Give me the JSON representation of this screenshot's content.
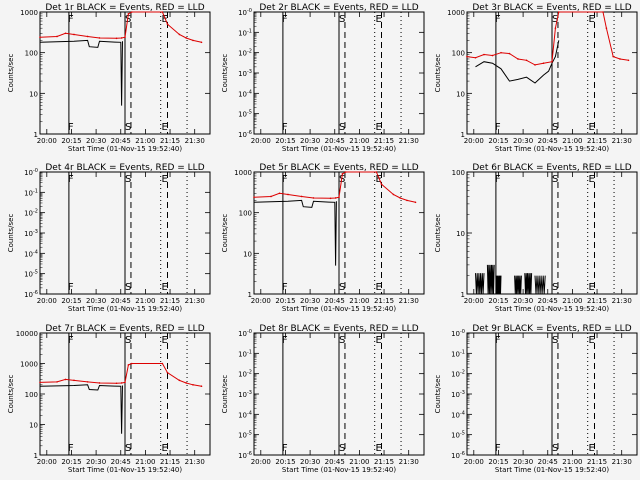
{
  "figure": {
    "xlabel": "Start Time (01-Nov-15 19:52:40)",
    "ylabel": "Counts/sec",
    "xticks": [
      "20:00",
      "20:15",
      "20:30",
      "20:45",
      "21:00",
      "21:15",
      "21:30"
    ],
    "series_colors": {
      "events": "#000000",
      "lld": "#dd0000"
    },
    "marker_labels": [
      "F",
      "S",
      "E"
    ]
  },
  "chart_data": [
    {
      "type": "line",
      "title": "Det 1r BLACK = Events, RED = LLD",
      "yscale": "log",
      "yticks": [
        "1",
        "10",
        "100",
        "1000"
      ],
      "ylim": [
        1,
        1000
      ],
      "series": [
        {
          "name": "BLACK = Events",
          "points": [
            [
              0.0,
              180
            ],
            [
              0.1,
              185
            ],
            [
              0.2,
              190
            ],
            [
              0.28,
              200
            ],
            [
              0.29,
              140
            ],
            [
              0.34,
              135
            ],
            [
              0.35,
              190
            ],
            [
              0.4,
              185
            ],
            [
              0.44,
              182
            ],
            [
              0.475,
              180
            ],
            [
              0.48,
              5
            ],
            [
              0.485,
              190
            ]
          ]
        },
        {
          "name": "RED = LLD",
          "points": [
            [
              0.0,
              240
            ],
            [
              0.1,
              250
            ],
            [
              0.15,
              300
            ],
            [
              0.2,
              280
            ],
            [
              0.28,
              250
            ],
            [
              0.35,
              230
            ],
            [
              0.45,
              225
            ],
            [
              0.48,
              230
            ],
            [
              0.5,
              240
            ],
            [
              0.52,
              900
            ],
            [
              0.54,
              1000
            ],
            [
              0.72,
              1000
            ],
            [
              0.75,
              500
            ],
            [
              0.82,
              280
            ],
            [
              0.86,
              230
            ],
            [
              0.9,
              200
            ],
            [
              0.95,
              180
            ]
          ]
        }
      ]
    },
    {
      "type": "line",
      "title": "Det 2r BLACK = Events, RED = LLD",
      "yscale": "log",
      "yticks": [
        "10^-0",
        "10^-1",
        "10^-2",
        "10^-3",
        "10^-4",
        "10^-5",
        "10^-6"
      ],
      "ylim": [
        1e-06,
        1
      ],
      "series": [
        {
          "name": "BLACK = Events",
          "points": []
        },
        {
          "name": "RED = LLD",
          "points": []
        }
      ]
    },
    {
      "type": "line",
      "title": "Det 3r BLACK = Events, RED = LLD",
      "yscale": "log",
      "yticks": [
        "1",
        "10",
        "100",
        "1000"
      ],
      "ylim": [
        1,
        1000
      ],
      "series": [
        {
          "name": "BLACK = Events",
          "points": [
            [
              0.05,
              45
            ],
            [
              0.1,
              60
            ],
            [
              0.15,
              55
            ],
            [
              0.2,
              40
            ],
            [
              0.25,
              20
            ],
            [
              0.3,
              22
            ],
            [
              0.35,
              25
            ],
            [
              0.4,
              18
            ],
            [
              0.45,
              28
            ],
            [
              0.48,
              35
            ],
            [
              0.5,
              55
            ],
            [
              0.52,
              80
            ],
            [
              0.54,
              200
            ]
          ]
        },
        {
          "name": "RED = LLD",
          "points": [
            [
              0.0,
              80
            ],
            [
              0.05,
              75
            ],
            [
              0.1,
              90
            ],
            [
              0.15,
              85
            ],
            [
              0.2,
              100
            ],
            [
              0.25,
              95
            ],
            [
              0.3,
              70
            ],
            [
              0.35,
              65
            ],
            [
              0.4,
              50
            ],
            [
              0.45,
              55
            ],
            [
              0.5,
              60
            ],
            [
              0.52,
              400
            ],
            [
              0.54,
              1000
            ],
            [
              0.8,
              1000
            ],
            [
              0.82,
              400
            ],
            [
              0.86,
              80
            ],
            [
              0.9,
              70
            ],
            [
              0.95,
              65
            ]
          ]
        }
      ]
    },
    {
      "type": "line",
      "title": "Det 4r BLACK = Events, RED = LLD",
      "yscale": "log",
      "yticks": [
        "10^-0",
        "10^-1",
        "10^-2",
        "10^-3",
        "10^-4",
        "10^-5",
        "10^-6"
      ],
      "ylim": [
        1e-06,
        1
      ],
      "series": [
        {
          "name": "BLACK = Events",
          "points": []
        },
        {
          "name": "RED = LLD",
          "points": []
        }
      ]
    },
    {
      "type": "line",
      "title": "Det 5r BLACK = Events, RED = LLD",
      "yscale": "log",
      "yticks": [
        "1",
        "10",
        "100",
        "1000"
      ],
      "ylim": [
        1,
        1000
      ],
      "series": [
        {
          "name": "BLACK = Events",
          "points": [
            [
              0.0,
              180
            ],
            [
              0.1,
              185
            ],
            [
              0.2,
              190
            ],
            [
              0.28,
              200
            ],
            [
              0.29,
              140
            ],
            [
              0.34,
              135
            ],
            [
              0.35,
              190
            ],
            [
              0.4,
              185
            ],
            [
              0.44,
              182
            ],
            [
              0.475,
              180
            ],
            [
              0.48,
              5
            ],
            [
              0.485,
              190
            ]
          ]
        },
        {
          "name": "RED = LLD",
          "points": [
            [
              0.0,
              240
            ],
            [
              0.1,
              250
            ],
            [
              0.15,
              300
            ],
            [
              0.2,
              280
            ],
            [
              0.28,
              250
            ],
            [
              0.35,
              230
            ],
            [
              0.45,
              225
            ],
            [
              0.48,
              230
            ],
            [
              0.5,
              240
            ],
            [
              0.52,
              900
            ],
            [
              0.54,
              1000
            ],
            [
              0.72,
              1000
            ],
            [
              0.75,
              500
            ],
            [
              0.82,
              280
            ],
            [
              0.86,
              230
            ],
            [
              0.9,
              200
            ],
            [
              0.95,
              180
            ]
          ]
        }
      ]
    },
    {
      "type": "line",
      "title": "Det 6r BLACK = Events, RED = LLD",
      "yscale": "log",
      "yticks": [
        "1",
        "10",
        "100"
      ],
      "ylim": [
        1,
        100
      ],
      "series": [
        {
          "name": "BLACK = Events",
          "points": []
        },
        {
          "name": "RED = LLD",
          "points": []
        }
      ],
      "bursts": [
        [
          0.05,
          0.1,
          2.2
        ],
        [
          0.12,
          0.16,
          3.0
        ],
        [
          0.17,
          0.2,
          2.0
        ],
        [
          0.28,
          0.32,
          2.0
        ],
        [
          0.34,
          0.38,
          2.2
        ],
        [
          0.4,
          0.46,
          2.0
        ]
      ]
    },
    {
      "type": "line",
      "title": "Det 7r BLACK = Events, RED = LLD",
      "yscale": "log",
      "yticks": [
        "1",
        "10",
        "100",
        "1000",
        "10000"
      ],
      "ylim": [
        1,
        10000
      ],
      "series": [
        {
          "name": "BLACK = Events",
          "points": [
            [
              0.0,
              180
            ],
            [
              0.1,
              185
            ],
            [
              0.2,
              190
            ],
            [
              0.28,
              200
            ],
            [
              0.29,
              140
            ],
            [
              0.34,
              135
            ],
            [
              0.35,
              190
            ],
            [
              0.4,
              185
            ],
            [
              0.44,
              182
            ],
            [
              0.475,
              180
            ],
            [
              0.48,
              5
            ],
            [
              0.485,
              190
            ]
          ]
        },
        {
          "name": "RED = LLD",
          "points": [
            [
              0.0,
              240
            ],
            [
              0.1,
              250
            ],
            [
              0.15,
              300
            ],
            [
              0.2,
              280
            ],
            [
              0.28,
              250
            ],
            [
              0.35,
              230
            ],
            [
              0.45,
              225
            ],
            [
              0.48,
              230
            ],
            [
              0.5,
              240
            ],
            [
              0.52,
              900
            ],
            [
              0.54,
              1000
            ],
            [
              0.72,
              1000
            ],
            [
              0.75,
              500
            ],
            [
              0.82,
              280
            ],
            [
              0.86,
              230
            ],
            [
              0.9,
              200
            ],
            [
              0.95,
              180
            ]
          ]
        }
      ]
    },
    {
      "type": "line",
      "title": "Det 8r BLACK = Events, RED = LLD",
      "yscale": "log",
      "yticks": [
        "10^-0",
        "10^-1",
        "10^-2",
        "10^-3",
        "10^-4",
        "10^-5",
        "10^-6"
      ],
      "ylim": [
        1e-06,
        1
      ],
      "series": [
        {
          "name": "BLACK = Events",
          "points": []
        },
        {
          "name": "RED = LLD",
          "points": []
        }
      ]
    },
    {
      "type": "line",
      "title": "Det 9r BLACK = Events, RED = LLD",
      "yscale": "log",
      "yticks": [
        "10^-0",
        "10^-1",
        "10^-2",
        "10^-3",
        "10^-4",
        "10^-5",
        "10^-6"
      ],
      "ylim": [
        1e-06,
        1
      ],
      "series": [
        {
          "name": "BLACK = Events",
          "points": []
        },
        {
          "name": "RED = LLD",
          "points": []
        }
      ]
    }
  ]
}
